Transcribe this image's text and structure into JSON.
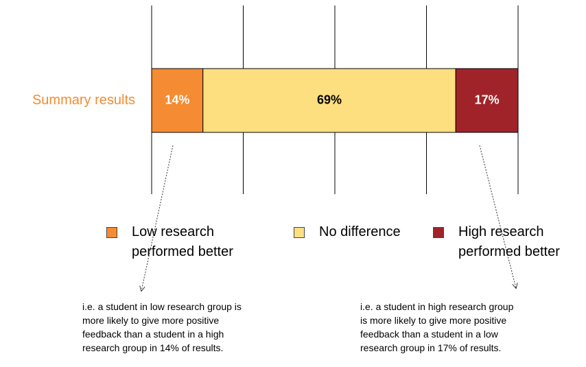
{
  "chart_data": {
    "type": "stacked-bar",
    "categories": [
      "Summary results"
    ],
    "category_color": "#f58b32",
    "series": [
      {
        "name": "Low research performed better",
        "color": "#f58b32",
        "label_color": "#ffffff",
        "values": [
          14
        ],
        "value_labels": [
          "14%"
        ]
      },
      {
        "name": "No difference",
        "color": "#fddf80",
        "label_color": "#000000",
        "values": [
          69
        ],
        "value_labels": [
          "69%"
        ]
      },
      {
        "name": "High research performed better",
        "color": "#a1232a",
        "label_color": "#ffffff",
        "values": [
          17
        ],
        "value_labels": [
          "17%"
        ]
      }
    ],
    "xlim": [
      0,
      100
    ],
    "xticks": [
      0,
      25,
      50,
      75,
      100
    ],
    "grid": true,
    "annotations": [
      [
        "i.e. a student in low research group is",
        "more likely to give more positive",
        "feedback than a student in a high",
        "research group in 14% of results."
      ],
      [
        "i.e. a student in high research group",
        "is more likely to give more positive",
        "feedback than a student in a low",
        "research group in 17% of results."
      ]
    ]
  }
}
